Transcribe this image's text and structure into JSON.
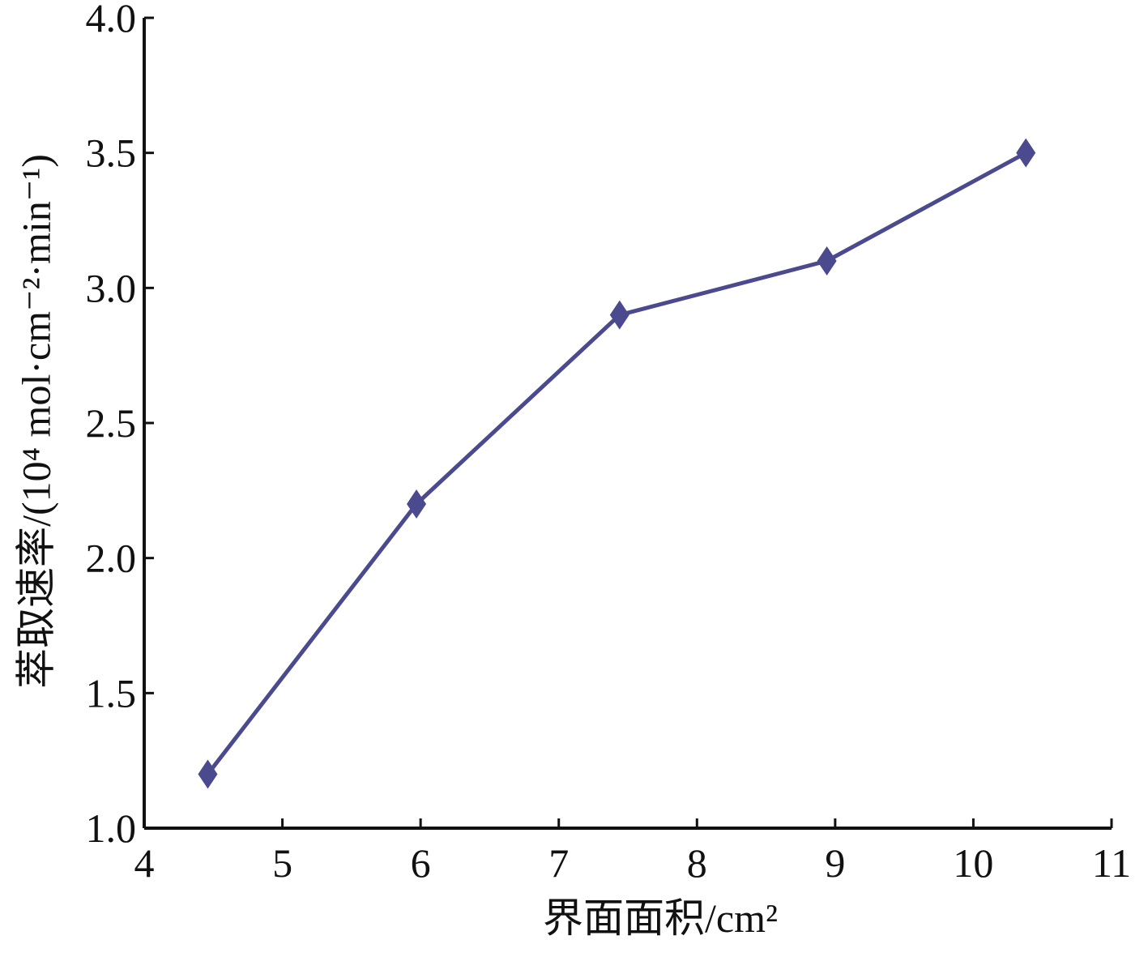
{
  "chart_data": {
    "type": "line",
    "x_label": "界面面积/cm²",
    "y_label": "萃取速率/(10⁴ mol·cm⁻²·min⁻¹)",
    "x": [
      4.46,
      5.97,
      7.44,
      8.94,
      10.38
    ],
    "series": [
      {
        "color": "#4b4a8f",
        "values": [
          1.2,
          2.2,
          2.9,
          3.1,
          3.5
        ]
      }
    ],
    "xlim": [
      4,
      11
    ],
    "xticks": [
      4,
      5,
      6,
      7,
      8,
      9,
      10,
      11
    ],
    "ylim": [
      1,
      4
    ],
    "yticks": [
      {
        "value": 1,
        "label": "1.0"
      },
      1.5,
      {
        "value": 2,
        "label": "2.0"
      },
      2.5,
      {
        "value": 3,
        "label": "3.0"
      },
      3.5,
      {
        "value": 4,
        "label": "4.0"
      }
    ],
    "grid": false
  }
}
